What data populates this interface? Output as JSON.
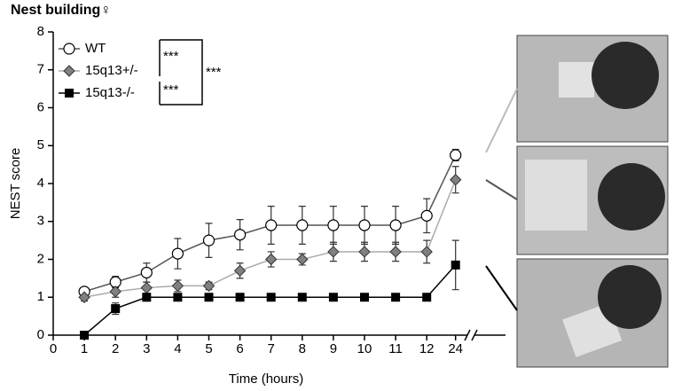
{
  "chart_data": {
    "type": "line",
    "title": "Nest building♀",
    "x_label": "Time (hours)",
    "y_label": "NEST score",
    "x": [
      1,
      2,
      3,
      4,
      5,
      6,
      7,
      8,
      9,
      10,
      11,
      12,
      24
    ],
    "xticks": [
      0,
      1,
      2,
      3,
      4,
      5,
      6,
      7,
      8,
      9,
      10,
      11,
      12,
      24
    ],
    "ylim": [
      0,
      8
    ],
    "yticks": [
      0,
      1,
      2,
      3,
      4,
      5,
      6,
      7,
      8
    ],
    "series": [
      {
        "name": "WT",
        "marker": "circle",
        "color": "#ffffff",
        "line_color": "#555555",
        "values": [
          1.15,
          1.4,
          1.65,
          2.15,
          2.5,
          2.65,
          2.9,
          2.9,
          2.9,
          2.9,
          2.9,
          3.15,
          4.75
        ],
        "errors": [
          0.1,
          0.15,
          0.25,
          0.4,
          0.45,
          0.4,
          0.5,
          0.5,
          0.5,
          0.5,
          0.5,
          0.45,
          0.15
        ]
      },
      {
        "name": "15q13+/-",
        "marker": "diamond",
        "color": "#808080",
        "line_color": "#aaaaaa",
        "values": [
          1.0,
          1.15,
          1.25,
          1.3,
          1.3,
          1.7,
          2.0,
          2.0,
          2.2,
          2.2,
          2.2,
          2.2,
          4.1
        ],
        "errors": [
          0.1,
          0.15,
          0.15,
          0.15,
          0.1,
          0.2,
          0.2,
          0.15,
          0.25,
          0.25,
          0.25,
          0.3,
          0.35
        ]
      },
      {
        "name": "15q13-/-",
        "marker": "square",
        "color": "#000000",
        "line_color": "#000000",
        "values": [
          0,
          0.7,
          1,
          1,
          1,
          1,
          1,
          1,
          1,
          1,
          1,
          1,
          1.85
        ],
        "errors": [
          0,
          0.15,
          0.1,
          0,
          0,
          0,
          0,
          0,
          0,
          0,
          0,
          0,
          0.65
        ]
      }
    ],
    "annotations": [
      "***",
      "***",
      "***"
    ]
  }
}
